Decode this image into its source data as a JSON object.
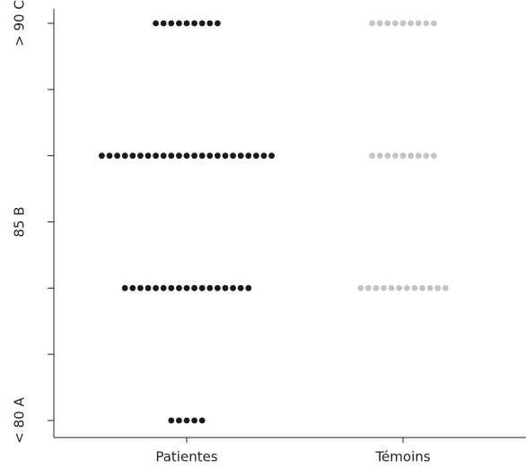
{
  "chart_data": {
    "type": "strip",
    "categories": [
      "Patientes",
      "Témoins"
    ],
    "colors": [
      "#1a1a1a",
      "#c4c4c4"
    ],
    "values": [
      [
        6,
        6,
        6,
        6,
        6,
        6,
        6,
        6,
        6,
        4,
        4,
        4,
        4,
        4,
        4,
        4,
        4,
        4,
        4,
        4,
        4,
        4,
        4,
        4,
        4,
        4,
        4,
        4,
        4,
        4,
        4,
        4,
        2,
        2,
        2,
        2,
        2,
        2,
        2,
        2,
        2,
        2,
        2,
        2,
        2,
        2,
        2,
        2,
        2,
        0,
        0,
        0,
        0,
        0
      ],
      [
        6,
        6,
        6,
        6,
        6,
        6,
        6,
        6,
        6,
        4,
        4,
        4,
        4,
        4,
        4,
        4,
        4,
        4,
        2,
        2,
        2,
        2,
        2,
        2,
        2,
        2,
        2,
        2,
        2,
        2
      ]
    ],
    "ylim": [
      0,
      6
    ],
    "yticks": [
      {
        "value": 0,
        "label": "< 80 A"
      },
      {
        "value": 1,
        "label": null
      },
      {
        "value": 2,
        "label": null
      },
      {
        "value": 3,
        "label": "85 B"
      },
      {
        "value": 4,
        "label": null
      },
      {
        "value": 5,
        "label": null
      },
      {
        "value": 6,
        "label": "> 90 C"
      }
    ]
  }
}
